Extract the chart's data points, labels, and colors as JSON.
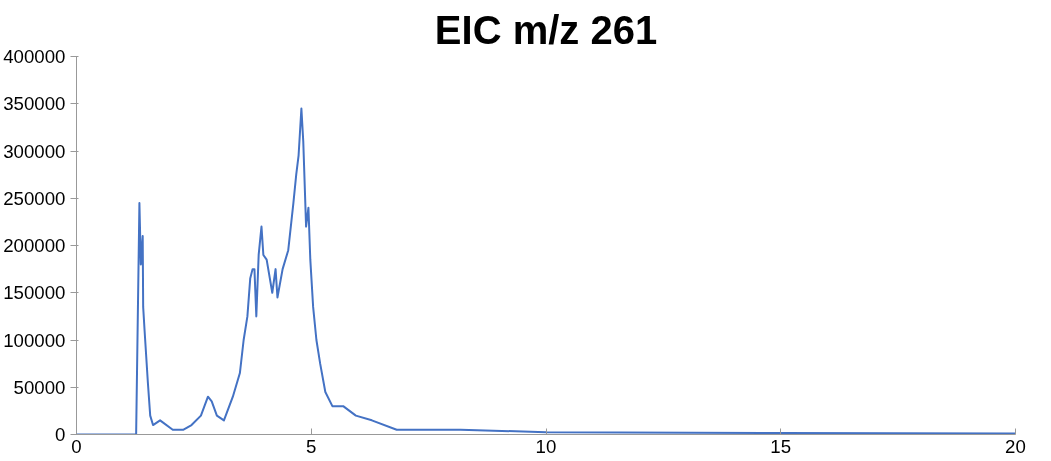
{
  "chart_data": {
    "type": "line",
    "title": "EIC m/z 261",
    "x": [
      0,
      1.27,
      1.34,
      1.37,
      1.41,
      1.42,
      1.45,
      1.52,
      1.57,
      1.63,
      1.78,
      2.05,
      2.27,
      2.45,
      2.65,
      2.8,
      2.88,
      2.99,
      3.14,
      3.33,
      3.48,
      3.56,
      3.64,
      3.7,
      3.75,
      3.79,
      3.83,
      3.88,
      3.94,
      3.98,
      4.05,
      4.17,
      4.24,
      4.28,
      4.39,
      4.51,
      4.62,
      4.68,
      4.73,
      4.79,
      4.83,
      4.89,
      4.94,
      4.98,
      5.04,
      5.11,
      5.19,
      5.3,
      5.45,
      5.68,
      5.95,
      6.29,
      6.82,
      7.42,
      8.18,
      10,
      15,
      20
    ],
    "series": [
      {
        "color": "#4472c4",
        "values": [
          0,
          0,
          245000,
          180000,
          210000,
          135000,
          110000,
          55000,
          20000,
          10000,
          15000,
          5000,
          5000,
          10000,
          20000,
          40000,
          35000,
          20000,
          15000,
          40000,
          65000,
          100000,
          125000,
          165000,
          175000,
          175000,
          125000,
          190000,
          220000,
          190000,
          185000,
          150000,
          175000,
          145000,
          175000,
          195000,
          245000,
          275000,
          295000,
          345000,
          310000,
          220000,
          240000,
          185000,
          135000,
          100000,
          75000,
          45000,
          30000,
          30000,
          20000,
          15000,
          5000,
          5000,
          5000,
          2500,
          1500,
          1000
        ]
      }
    ],
    "xlim": [
      0,
      20
    ],
    "xticks": [
      0,
      5,
      10,
      15,
      20
    ],
    "ylim": [
      0,
      400000
    ],
    "yticks": [
      0,
      50000,
      100000,
      150000,
      200000,
      250000,
      300000,
      350000,
      400000
    ],
    "grid": false,
    "line_style": "solid",
    "marker": "none"
  }
}
